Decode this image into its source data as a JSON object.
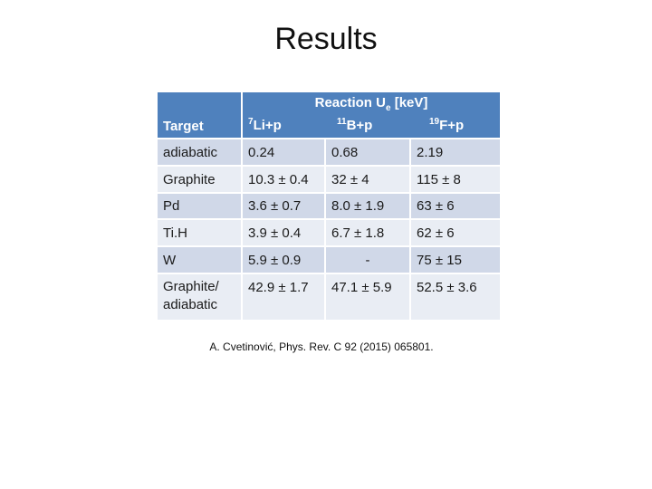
{
  "title": "Results",
  "table": {
    "header": {
      "target": "Target",
      "reaction_prefix": "Reaction U",
      "reaction_sub": "e",
      "reaction_suffix": " [keV]",
      "col1_mass": "7",
      "col1_rest": "Li+p",
      "col2_mass": "11",
      "col2_rest": "B+p",
      "col3_mass": "19",
      "col3_rest": "F+p"
    },
    "rows": [
      {
        "target": "adiabatic",
        "li": "0.24",
        "b": "0.68",
        "f": "2.19"
      },
      {
        "target": "Graphite",
        "li": "10.3 ± 0.4",
        "b": "32 ± 4",
        "f": "115 ± 8"
      },
      {
        "target": "Pd",
        "li": "3.6 ± 0.7",
        "b": "8.0 ± 1.9",
        "f": "63 ± 6"
      },
      {
        "target": "Ti.H",
        "li": "3.9 ± 0.4",
        "b": "6.7 ± 1.8",
        "f": "62 ± 6"
      },
      {
        "target": "W",
        "li": "5.9 ± 0.9",
        "b": "-",
        "f": "75 ± 15"
      },
      {
        "target": "Graphite/ adiabatic",
        "li": "42.9 ± 1.7",
        "b": "47.1 ± 5.9",
        "f": "52.5 ± 3.6"
      }
    ]
  },
  "citation": "A. Cvetinović, Phys. Rev. C 92 (2015) 065801."
}
